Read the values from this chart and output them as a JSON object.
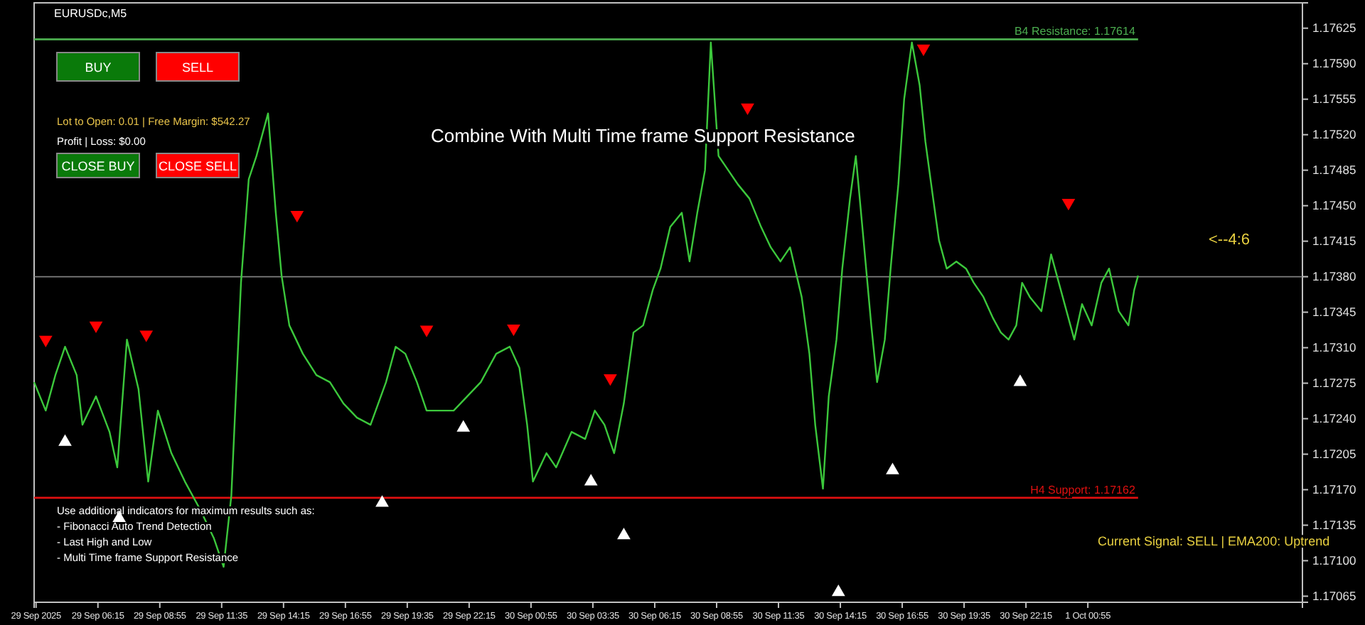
{
  "chart_data": {
    "type": "line",
    "title": "Combine With Multi Time frame Support Resistance",
    "xlim": [
      "2025-09-29T03:30",
      "2025-10-01T10:10"
    ],
    "ylim": [
      1.17059,
      1.1765
    ],
    "xticks": [
      {
        "value": "2025-09-29T03:35",
        "label": "29 Sep 2025"
      },
      {
        "value": "2025-09-29T06:15",
        "label": "29 Sep 06:15"
      },
      {
        "value": "2025-09-29T08:55",
        "label": "29 Sep 08:55"
      },
      {
        "value": "2025-09-29T11:35",
        "label": "29 Sep 11:35"
      },
      {
        "value": "2025-09-29T14:15",
        "label": "29 Sep 14:15"
      },
      {
        "value": "2025-09-29T16:55",
        "label": "29 Sep 16:55"
      },
      {
        "value": "2025-09-29T19:35",
        "label": "29 Sep 19:35"
      },
      {
        "value": "2025-09-29T22:15",
        "label": "29 Sep 22:15"
      },
      {
        "value": "2025-09-30T00:55",
        "label": "30 Sep 00:55"
      },
      {
        "value": "2025-09-30T03:35",
        "label": "30 Sep 03:35"
      },
      {
        "value": "2025-09-30T06:15",
        "label": "30 Sep 06:15"
      },
      {
        "value": "2025-09-30T08:55",
        "label": "30 Sep 08:55"
      },
      {
        "value": "2025-09-30T11:35",
        "label": "30 Sep 11:35"
      },
      {
        "value": "2025-09-30T14:15",
        "label": "30 Sep 14:15"
      },
      {
        "value": "2025-09-30T16:55",
        "label": "30 Sep 16:55"
      },
      {
        "value": "2025-09-30T19:35",
        "label": "30 Sep 19:35"
      },
      {
        "value": "2025-09-30T22:15",
        "label": "30 Sep 22:15"
      },
      {
        "value": "2025-10-01T00:55",
        "label": "1 Oct 00:55"
      }
    ],
    "yticks": [
      {
        "value": 1.17625,
        "label": "1.17625"
      },
      {
        "value": 1.1759,
        "label": "1.17590"
      },
      {
        "value": 1.17555,
        "label": "1.17555"
      },
      {
        "value": 1.1752,
        "label": "1.17520"
      },
      {
        "value": 1.17485,
        "label": "1.17485"
      },
      {
        "value": 1.1745,
        "label": "1.17450"
      },
      {
        "value": 1.17415,
        "label": "1.17415"
      },
      {
        "value": 1.1738,
        "label": "1.17380"
      },
      {
        "value": 1.17345,
        "label": "1.17345"
      },
      {
        "value": 1.1731,
        "label": "1.17310"
      },
      {
        "value": 1.17275,
        "label": "1.17275"
      },
      {
        "value": 1.1724,
        "label": "1.17240"
      },
      {
        "value": 1.17205,
        "label": "1.17205"
      },
      {
        "value": 1.1717,
        "label": "1.17170"
      },
      {
        "value": 1.17135,
        "label": "1.17135"
      },
      {
        "value": 1.171,
        "label": "1.17100"
      },
      {
        "value": 1.17065,
        "label": "1.17065"
      }
    ],
    "series": [
      {
        "color": "#3cc83c",
        "x": [
          "2025-09-29T03:30",
          "2025-09-29T04:00",
          "2025-09-29T04:25",
          "2025-09-29T04:50",
          "2025-09-29T05:20",
          "2025-09-29T05:35",
          "2025-09-29T06:10",
          "2025-09-29T06:45",
          "2025-09-29T07:05",
          "2025-09-29T07:30",
          "2025-09-29T08:00",
          "2025-09-29T08:25",
          "2025-09-29T08:50",
          "2025-09-29T09:25",
          "2025-09-29T10:00",
          "2025-09-29T10:40",
          "2025-09-29T11:15",
          "2025-09-29T11:40",
          "2025-09-29T12:00",
          "2025-09-29T12:25",
          "2025-09-29T12:45",
          "2025-09-29T13:05",
          "2025-09-29T13:35",
          "2025-09-29T13:55",
          "2025-09-29T14:10",
          "2025-09-29T14:30",
          "2025-09-29T15:05",
          "2025-09-29T15:40",
          "2025-09-29T16:15",
          "2025-09-29T16:50",
          "2025-09-29T17:25",
          "2025-09-29T18:00",
          "2025-09-29T18:40",
          "2025-09-29T19:05",
          "2025-09-29T19:30",
          "2025-09-29T20:00",
          "2025-09-29T20:25",
          "2025-09-29T21:00",
          "2025-09-29T21:35",
          "2025-09-29T22:10",
          "2025-09-29T22:45",
          "2025-09-29T23:25",
          "2025-09-30T00:00",
          "2025-09-30T00:25",
          "2025-09-30T00:45",
          "2025-09-30T01:00",
          "2025-09-30T01:35",
          "2025-09-30T02:00",
          "2025-09-30T02:40",
          "2025-09-30T03:15",
          "2025-09-30T03:40",
          "2025-09-30T04:05",
          "2025-09-30T04:30",
          "2025-09-30T04:55",
          "2025-09-30T05:20",
          "2025-09-30T05:45",
          "2025-09-30T06:10",
          "2025-09-30T06:30",
          "2025-09-30T06:55",
          "2025-09-30T07:25",
          "2025-09-30T07:45",
          "2025-09-30T08:05",
          "2025-09-30T08:25",
          "2025-09-30T08:40",
          "2025-09-30T09:00",
          "2025-09-30T09:25",
          "2025-09-30T09:50",
          "2025-09-30T10:20",
          "2025-09-30T10:50",
          "2025-09-30T11:15",
          "2025-09-30T11:40",
          "2025-09-30T12:05",
          "2025-09-30T12:35",
          "2025-09-30T12:55",
          "2025-09-30T13:10",
          "2025-09-30T13:30",
          "2025-09-30T13:45",
          "2025-09-30T14:05",
          "2025-09-30T14:20",
          "2025-09-30T14:40",
          "2025-09-30T14:55",
          "2025-09-30T15:15",
          "2025-09-30T15:35",
          "2025-09-30T15:50",
          "2025-09-30T16:10",
          "2025-09-30T16:25",
          "2025-09-30T16:45",
          "2025-09-30T17:00",
          "2025-09-30T17:20",
          "2025-09-30T17:40",
          "2025-09-30T17:55",
          "2025-09-30T18:15",
          "2025-09-30T18:30",
          "2025-09-30T18:50",
          "2025-09-30T19:15",
          "2025-09-30T19:40",
          "2025-09-30T20:00",
          "2025-09-30T20:25",
          "2025-09-30T20:50",
          "2025-09-30T21:10",
          "2025-09-30T21:30",
          "2025-09-30T21:50",
          "2025-09-30T22:05",
          "2025-09-30T22:25",
          "2025-09-30T22:55",
          "2025-09-30T23:20",
          "2025-09-30T23:40",
          "2025-10-01T00:00",
          "2025-10-01T00:20",
          "2025-10-01T00:40",
          "2025-10-01T01:05",
          "2025-10-01T01:30",
          "2025-10-01T01:50",
          "2025-10-01T02:15",
          "2025-10-01T02:40",
          "2025-10-01T02:55",
          "2025-10-01T03:05"
        ],
        "values": [
          1.17276,
          1.17248,
          1.17283,
          1.17311,
          1.17283,
          1.17234,
          1.17262,
          1.17227,
          1.17192,
          1.17318,
          1.17269,
          1.17178,
          1.17248,
          1.17206,
          1.17178,
          1.1715,
          1.17122,
          1.17094,
          1.17164,
          1.17374,
          1.17476,
          1.17499,
          1.17541,
          1.17443,
          1.17381,
          1.17332,
          1.17304,
          1.17283,
          1.17276,
          1.17255,
          1.17241,
          1.17234,
          1.17276,
          1.17311,
          1.17304,
          1.17276,
          1.17248,
          1.17248,
          1.17248,
          1.17262,
          1.17276,
          1.17304,
          1.17311,
          1.1729,
          1.17234,
          1.17178,
          1.17206,
          1.17192,
          1.17227,
          1.1722,
          1.17248,
          1.17234,
          1.17206,
          1.17255,
          1.17325,
          1.17332,
          1.17367,
          1.17388,
          1.17429,
          1.17443,
          1.17395,
          1.17443,
          1.17485,
          1.17611,
          1.17499,
          1.17485,
          1.17471,
          1.17457,
          1.17429,
          1.17409,
          1.17395,
          1.17409,
          1.1736,
          1.17304,
          1.17234,
          1.17171,
          1.17262,
          1.17318,
          1.17388,
          1.17457,
          1.17499,
          1.17416,
          1.17332,
          1.17276,
          1.17318,
          1.17388,
          1.17471,
          1.17555,
          1.17611,
          1.17569,
          1.17513,
          1.17457,
          1.17416,
          1.17388,
          1.17395,
          1.17388,
          1.17374,
          1.1736,
          1.17339,
          1.17325,
          1.17318,
          1.17332,
          1.17374,
          1.1736,
          1.17346,
          1.17402,
          1.17374,
          1.17346,
          1.17318,
          1.17353,
          1.17332,
          1.17374,
          1.17388,
          1.17346,
          1.17332,
          1.17367,
          1.17381
        ]
      },
      {
        "type": "scatter",
        "marker": "triangle",
        "color": "#ff0000",
        "x": [
          "2025-09-29T04:00",
          "2025-09-29T06:10",
          "2025-09-29T08:20",
          "2025-09-29T14:50",
          "2025-09-29T20:25",
          "2025-09-30T00:10",
          "2025-09-30T04:20",
          "2025-09-30T10:15",
          "2025-09-30T17:50",
          "2025-10-01T00:05"
        ],
        "values": [
          1.17318,
          1.17332,
          1.17323,
          1.17441,
          1.17328,
          1.17329,
          1.1728,
          1.17547,
          1.17605,
          1.17453
        ]
      },
      {
        "type": "scatter",
        "marker": "triangle",
        "color": "#ffffff",
        "x": [
          "2025-09-29T04:50",
          "2025-09-29T07:10",
          "2025-09-29T18:30",
          "2025-09-29T22:00",
          "2025-09-30T03:30",
          "2025-09-30T04:55",
          "2025-09-30T14:10",
          "2025-09-30T16:30",
          "2025-09-30T22:00"
        ],
        "values": [
          1.17217,
          1.17142,
          1.17157,
          1.17231,
          1.17178,
          1.17125,
          1.17069,
          1.17189,
          1.17276
        ]
      }
    ],
    "ref_lines": [
      {
        "axis": "y",
        "value": 1.17614,
        "label": "B4 Resistance: 1.17614",
        "color": "#4caf50"
      },
      {
        "axis": "y",
        "value": 1.17162,
        "label": "H4 Support: 1.17162",
        "color": "#e01010"
      },
      {
        "axis": "y",
        "value": 1.1738,
        "color": "#808080"
      }
    ],
    "annotations": [
      "EURUSDc,M5",
      "BUY",
      "SELL",
      "Lot to Open: 0.01 | Free Margin: $542.27",
      "Profit | Loss: $0.00",
      "CLOSE BUY",
      "CLOSE SELL",
      "Use additional indicators for maximum results such as:",
      "- Fibonacci Auto Trend Detection",
      "- Last High and Low",
      "- Multi Time frame Support Resistance",
      "<--4:6",
      "Current Signal: SELL | EMA200: Uptrend"
    ],
    "grid": false
  }
}
